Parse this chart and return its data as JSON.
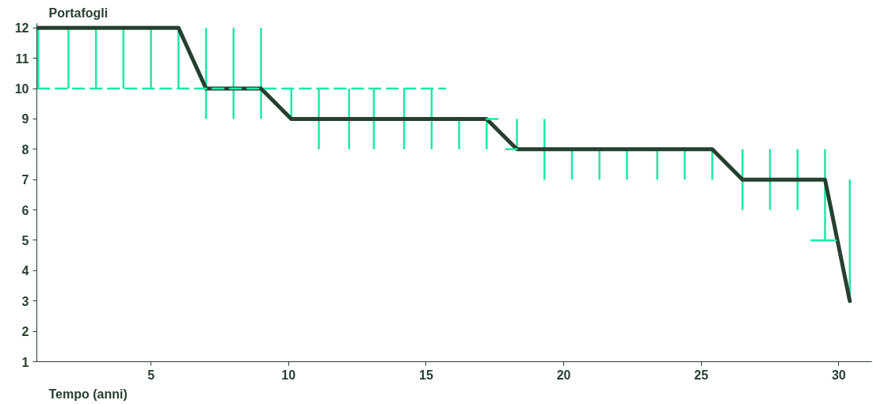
{
  "chart_data": {
    "type": "line",
    "xlabel": "Tempo (anni)",
    "ylabel": "Portafogli",
    "xlim": [
      0.85,
      31.2
    ],
    "ylim": [
      1,
      12.15
    ],
    "xticks": [
      5,
      10,
      15,
      20,
      25,
      30
    ],
    "yticks": [
      1,
      2,
      3,
      4,
      5,
      6,
      7,
      8,
      9,
      10,
      11,
      12
    ],
    "grid": false,
    "marker": "none",
    "line_style": "solid",
    "series": [
      {
        "color": "#26402f",
        "colors": [
          "#1ee8a8",
          "#1ee8a8",
          "#1ee8a8",
          "#1ee8a8",
          "#1ee8a8",
          "#1ee8a8",
          "#1ee8a8",
          "#1ee8a8",
          "#1ee8a8",
          "#1ee8a8",
          "#1ee8a8",
          "#1ee8a8",
          "#1ee8a8",
          "#1ee8a8",
          "#1ee8a8",
          "#1ee8a8",
          "#1ee8a8",
          "#1ee8a8",
          "#1ee8a8",
          "#1ee8a8",
          "#1ee8a8",
          "#1ee8a8",
          "#1ee8a8",
          "#1ee8a8",
          "#1ee8a8",
          "#1ee8a8",
          "#1ee8a8",
          "#1ee8a8",
          "#1ee8a8",
          "#1ee8a8"
        ],
        "x": [
          0.9,
          2,
          3,
          4,
          5,
          6,
          7,
          8,
          9,
          10.1,
          11.1,
          12.2,
          13.1,
          14.2,
          15.2,
          16.2,
          17.2,
          18.3,
          19.3,
          20.3,
          21.3,
          22.3,
          23.4,
          24.4,
          25.4,
          26.5,
          27.5,
          28.5,
          29.5,
          30.4
        ],
        "values": [
          12,
          12,
          12,
          12,
          12,
          12,
          10,
          10,
          10,
          9,
          9,
          9,
          9,
          9,
          9,
          9,
          9,
          8,
          8,
          8,
          8,
          8,
          8,
          8,
          8,
          7,
          7,
          7,
          7,
          3
        ],
        "errors": [
          [
            10,
            12
          ],
          [
            10,
            12
          ],
          [
            10,
            12
          ],
          [
            10,
            12
          ],
          [
            10,
            12
          ],
          [
            10,
            12
          ],
          [
            9,
            12
          ],
          [
            9,
            12
          ],
          [
            9,
            12
          ],
          [
            9,
            10
          ],
          [
            8,
            10
          ],
          [
            8,
            10
          ],
          [
            8,
            10
          ],
          [
            8,
            10
          ],
          [
            8,
            10
          ],
          [
            8,
            9
          ],
          [
            8,
            9
          ],
          [
            8,
            9
          ],
          [
            7,
            9
          ],
          [
            7,
            8
          ],
          [
            7,
            8
          ],
          [
            7,
            8
          ],
          [
            7,
            8
          ],
          [
            7,
            8
          ],
          [
            7,
            8
          ],
          [
            6,
            8
          ],
          [
            6,
            8
          ],
          [
            6,
            8
          ],
          [
            5,
            8
          ],
          [
            3,
            7
          ]
        ]
      },
      {
        "color": "#1ee8a8",
        "line_style": "dashed",
        "x": [
          0.9,
          15.7
        ],
        "values": [
          10,
          10
        ]
      },
      {
        "color": "#1ee8a8",
        "x": [
          17.2,
          17.6
        ],
        "values": [
          9,
          9
        ]
      },
      {
        "color": "#1ee8a8",
        "x": [
          17.9,
          18.3
        ],
        "values": [
          8,
          8
        ]
      },
      {
        "color": "#1ee8a8",
        "x": [
          29.0,
          29.9
        ],
        "values": [
          5,
          5
        ]
      }
    ]
  }
}
